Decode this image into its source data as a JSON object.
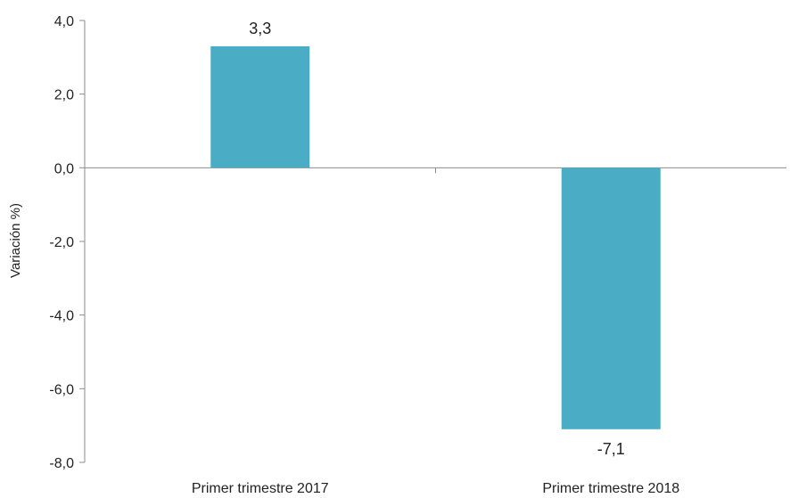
{
  "chart_data": {
    "type": "bar",
    "categories": [
      "Primer trimestre 2017",
      "Primer trimestre 2018"
    ],
    "values": [
      3.3,
      -7.1
    ],
    "data_labels": [
      "3,3",
      "-7,1"
    ],
    "title": "",
    "xlabel": "",
    "ylabel": "Variación %)",
    "ylim": [
      -8.0,
      4.0
    ],
    "yticks": [
      4.0,
      2.0,
      0.0,
      -2.0,
      -4.0,
      -6.0,
      -8.0
    ],
    "ytick_labels": [
      "4,0",
      "2,0",
      "0,0",
      "-2,0",
      "-4,0",
      "-6,0",
      "-8,0"
    ],
    "grid": false,
    "legend": "none",
    "bar_color": "#4bacc6"
  }
}
